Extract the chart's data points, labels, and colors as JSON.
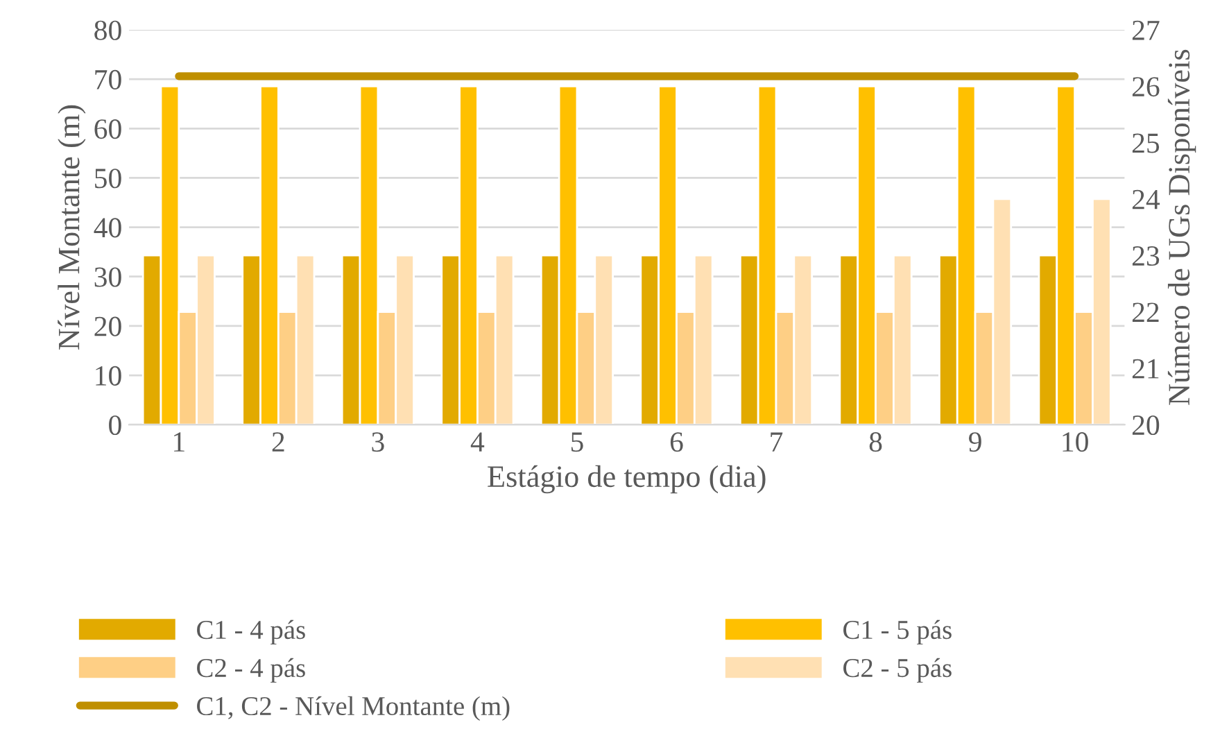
{
  "chart_data": {
    "type": "bar",
    "xlabel": "Estágio de tempo (dia)",
    "ylabel": "Nível Montante (m)",
    "y2label": "Número de UGs Disponíveis",
    "categories": [
      "1",
      "2",
      "3",
      "4",
      "5",
      "6",
      "7",
      "8",
      "9",
      "10"
    ],
    "series": [
      {
        "name": "C1 - 4 pás",
        "color": "#e2aa00",
        "axis": "y2",
        "values": [
          23,
          23,
          23,
          23,
          23,
          23,
          23,
          23,
          23,
          23
        ]
      },
      {
        "name": "C1 - 5 pás",
        "color": "#ffc000",
        "axis": "y2",
        "values": [
          26,
          26,
          26,
          26,
          26,
          26,
          26,
          26,
          26,
          26
        ]
      },
      {
        "name": "C2 - 4 pás",
        "color": "#fecf85",
        "axis": "y2",
        "values": [
          22,
          22,
          22,
          22,
          22,
          22,
          22,
          22,
          22,
          22
        ]
      },
      {
        "name": "C2 - 5 pás",
        "color": "#ffe0b3",
        "axis": "y2",
        "values": [
          23,
          23,
          23,
          23,
          23,
          23,
          23,
          23,
          24,
          24
        ]
      },
      {
        "name": "C1, C2 - Nível Montante (m)",
        "type": "line",
        "color": "#bf8f00",
        "values": [
          70.6,
          70.6,
          70.6,
          70.6,
          70.6,
          70.6,
          70.6,
          70.6,
          70.6,
          70.6
        ]
      }
    ],
    "ylim": [
      0,
      80
    ],
    "yticks": [
      0,
      10,
      20,
      30,
      40,
      50,
      60,
      70,
      80
    ],
    "y2lim": [
      20,
      27
    ],
    "y2ticks": [
      20,
      21,
      22,
      23,
      24,
      25,
      26,
      27
    ],
    "grid": "y",
    "legend": "bottom"
  }
}
